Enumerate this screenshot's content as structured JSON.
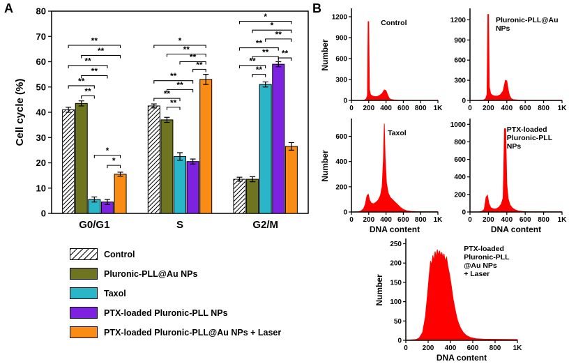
{
  "panels": {
    "a_label": "A",
    "b_label": "B"
  },
  "colors": {
    "axis": "#000000",
    "histogram_fill": "#ff0000"
  },
  "chart_data": [
    {
      "id": "cell-cycle-bar",
      "type": "bar",
      "title": "",
      "xlabel": "",
      "ylabel": "Cell cycle (%)",
      "ylim": [
        0,
        80
      ],
      "yticks": [
        0,
        10,
        20,
        30,
        40,
        50,
        60,
        70,
        80
      ],
      "categories": [
        "G0/G1",
        "S",
        "G2/M"
      ],
      "legend_position": "below",
      "series": [
        {
          "name": "Control",
          "hatched": true,
          "color": "#ffffff",
          "values": [
            41,
            42.5,
            13.5
          ],
          "errors": [
            1,
            0.8,
            0.8
          ]
        },
        {
          "name": "Pluronic-PLL@Au NPs",
          "hatched": false,
          "color": "#6e7420",
          "values": [
            43.5,
            37,
            13.5
          ],
          "errors": [
            1,
            1,
            1
          ]
        },
        {
          "name": "Taxol",
          "hatched": false,
          "color": "#29b6c8",
          "values": [
            5.5,
            22.5,
            51
          ],
          "errors": [
            1,
            1.5,
            1
          ]
        },
        {
          "name": "PTX-loaded Pluronic-PLL NPs",
          "hatched": false,
          "color": "#7d22e0",
          "values": [
            4.5,
            20.5,
            59
          ],
          "errors": [
            1,
            1,
            1
          ]
        },
        {
          "name": "PTX-loaded Pluronic-PLL@Au NPs + Laser",
          "hatched": false,
          "color": "#fa8b15",
          "values": [
            15.5,
            53,
            26.5
          ],
          "errors": [
            0.8,
            2,
            1.5
          ]
        }
      ],
      "significance": [
        {
          "group": 0,
          "a": 2,
          "b": 3,
          "y": 46.5,
          "label": "**"
        },
        {
          "group": 0,
          "a": 1,
          "b": 3,
          "y": 50.5,
          "label": "**"
        },
        {
          "group": 0,
          "a": 2,
          "b": 4,
          "y": 54.5,
          "label": "**"
        },
        {
          "group": 0,
          "a": 1,
          "b": 4,
          "y": 58.5,
          "label": "**"
        },
        {
          "group": 0,
          "a": 2,
          "b": 5,
          "y": 62.5,
          "label": "**"
        },
        {
          "group": 0,
          "a": 1,
          "b": 5,
          "y": 66.5,
          "label": "**"
        },
        {
          "group": 0,
          "a": 4,
          "b": 5,
          "y": 19,
          "label": "*"
        },
        {
          "group": 0,
          "a": 3,
          "b": 5,
          "y": 23,
          "label": "*"
        },
        {
          "group": 1,
          "a": 2,
          "b": 3,
          "y": 42,
          "label": "**"
        },
        {
          "group": 1,
          "a": 1,
          "b": 3,
          "y": 45.5,
          "label": "**"
        },
        {
          "group": 1,
          "a": 2,
          "b": 4,
          "y": 49,
          "label": "**"
        },
        {
          "group": 1,
          "a": 1,
          "b": 4,
          "y": 52.5,
          "label": "**"
        },
        {
          "group": 1,
          "a": 4,
          "b": 5,
          "y": 57,
          "label": "**"
        },
        {
          "group": 1,
          "a": 3,
          "b": 5,
          "y": 60,
          "label": "**"
        },
        {
          "group": 1,
          "a": 2,
          "b": 5,
          "y": 63,
          "label": "**"
        },
        {
          "group": 1,
          "a": 1,
          "b": 5,
          "y": 66.5,
          "label": "*"
        },
        {
          "group": 2,
          "a": 2,
          "b": 3,
          "y": 55,
          "label": "**"
        },
        {
          "group": 2,
          "a": 1,
          "b": 3,
          "y": 58.5,
          "label": "**"
        },
        {
          "group": 2,
          "a": 4,
          "b": 5,
          "y": 61.5,
          "label": "**"
        },
        {
          "group": 2,
          "a": 2,
          "b": 4,
          "y": 62,
          "label": "**"
        },
        {
          "group": 2,
          "a": 1,
          "b": 4,
          "y": 65.5,
          "label": "**"
        },
        {
          "group": 2,
          "a": 3,
          "b": 5,
          "y": 69,
          "label": "**"
        },
        {
          "group": 2,
          "a": 2,
          "b": 5,
          "y": 72.5,
          "label": "*"
        },
        {
          "group": 2,
          "a": 1,
          "b": 5,
          "y": 76,
          "label": "*"
        }
      ]
    },
    {
      "id": "hist-control",
      "type": "area",
      "label_lines": [
        "Control"
      ],
      "label_x": 0.34,
      "label_y": 0.1,
      "ylabel": "Number",
      "xlabel": "",
      "xlim": [
        0,
        1000
      ],
      "xticks": [
        0,
        200,
        400,
        600,
        800,
        1000
      ],
      "xtick_labels": [
        "0",
        "200",
        "400",
        "600",
        "800",
        "1K"
      ],
      "ylim": [
        0,
        1300
      ],
      "yticks": [
        0,
        300,
        600,
        900,
        1200
      ],
      "fill": "#ff0000",
      "points": [
        [
          0,
          0
        ],
        [
          120,
          2
        ],
        [
          150,
          6
        ],
        [
          170,
          20
        ],
        [
          185,
          70
        ],
        [
          193,
          1130
        ],
        [
          200,
          1130
        ],
        [
          208,
          160
        ],
        [
          220,
          85
        ],
        [
          240,
          65
        ],
        [
          265,
          55
        ],
        [
          295,
          55
        ],
        [
          325,
          70
        ],
        [
          355,
          100
        ],
        [
          380,
          150
        ],
        [
          400,
          140
        ],
        [
          418,
          80
        ],
        [
          435,
          35
        ],
        [
          455,
          14
        ],
        [
          490,
          7
        ],
        [
          550,
          4
        ],
        [
          650,
          2
        ],
        [
          1000,
          2
        ]
      ]
    },
    {
      "id": "hist-pluronic-pll-au-nps",
      "type": "area",
      "label_lines": [
        "Pluronic-PLL@Au",
        "NPs"
      ],
      "label_x": 0.28,
      "label_y": 0.07,
      "ylabel": "",
      "xlabel": "",
      "xlim": [
        0,
        1000
      ],
      "xticks": [
        0,
        200,
        400,
        600,
        800,
        1000
      ],
      "xtick_labels": [
        "0",
        "200",
        "400",
        "600",
        "800",
        "1K"
      ],
      "ylim": [
        0,
        1350
      ],
      "yticks": [
        0,
        300,
        600,
        900,
        1200
      ],
      "fill": "#ff0000",
      "points": [
        [
          0,
          0
        ],
        [
          120,
          2
        ],
        [
          150,
          8
        ],
        [
          170,
          25
        ],
        [
          185,
          90
        ],
        [
          194,
          1280
        ],
        [
          202,
          1280
        ],
        [
          210,
          200
        ],
        [
          225,
          100
        ],
        [
          245,
          75
        ],
        [
          270,
          65
        ],
        [
          300,
          65
        ],
        [
          330,
          85
        ],
        [
          360,
          140
        ],
        [
          385,
          300
        ],
        [
          400,
          290
        ],
        [
          415,
          160
        ],
        [
          430,
          70
        ],
        [
          450,
          25
        ],
        [
          475,
          10
        ],
        [
          520,
          6
        ],
        [
          600,
          3
        ],
        [
          1000,
          2
        ]
      ]
    },
    {
      "id": "hist-taxol",
      "type": "area",
      "label_lines": [
        "Taxol"
      ],
      "label_x": 0.42,
      "label_y": 0.1,
      "ylabel": "Number",
      "xlabel": "DNA content",
      "xlim": [
        0,
        1000
      ],
      "xticks": [
        0,
        200,
        400,
        600,
        800,
        1000
      ],
      "xtick_labels": [
        "0",
        "200",
        "400",
        "600",
        "800",
        "1K"
      ],
      "ylim": [
        0,
        730
      ],
      "yticks": [
        0,
        200,
        400,
        600
      ],
      "fill": "#ff0000",
      "points": [
        [
          0,
          0
        ],
        [
          80,
          2
        ],
        [
          110,
          8
        ],
        [
          140,
          25
        ],
        [
          160,
          60
        ],
        [
          180,
          130
        ],
        [
          195,
          140
        ],
        [
          210,
          95
        ],
        [
          230,
          70
        ],
        [
          255,
          65
        ],
        [
          280,
          75
        ],
        [
          310,
          95
        ],
        [
          335,
          130
        ],
        [
          355,
          200
        ],
        [
          370,
          420
        ],
        [
          380,
          700
        ],
        [
          390,
          430
        ],
        [
          405,
          230
        ],
        [
          425,
          150
        ],
        [
          450,
          115
        ],
        [
          480,
          95
        ],
        [
          510,
          75
        ],
        [
          540,
          55
        ],
        [
          570,
          35
        ],
        [
          600,
          20
        ],
        [
          640,
          10
        ],
        [
          690,
          5
        ],
        [
          750,
          3
        ],
        [
          1000,
          2
        ]
      ]
    },
    {
      "id": "hist-ptx-loaded-pluronic-pll-nps",
      "type": "area",
      "label_lines": [
        "PTX-loaded",
        "Pluronic-PLL",
        "NPs"
      ],
      "label_x": 0.4,
      "label_y": 0.06,
      "ylabel": "",
      "xlabel": "DNA content",
      "xlim": [
        0,
        1000
      ],
      "xticks": [
        0,
        200,
        400,
        600,
        800,
        1000
      ],
      "xtick_labels": [
        "0",
        "200",
        "400",
        "600",
        "800",
        "1K"
      ],
      "ylim": [
        0,
        1050
      ],
      "yticks": [
        0,
        200,
        400,
        600,
        800,
        1000
      ],
      "fill": "#ff0000",
      "points": [
        [
          0,
          0
        ],
        [
          100,
          2
        ],
        [
          130,
          8
        ],
        [
          155,
          30
        ],
        [
          175,
          170
        ],
        [
          190,
          190
        ],
        [
          205,
          100
        ],
        [
          225,
          50
        ],
        [
          255,
          35
        ],
        [
          285,
          35
        ],
        [
          315,
          55
        ],
        [
          340,
          90
        ],
        [
          360,
          160
        ],
        [
          375,
          950
        ],
        [
          388,
          950
        ],
        [
          400,
          320
        ],
        [
          415,
          150
        ],
        [
          435,
          80
        ],
        [
          460,
          45
        ],
        [
          490,
          25
        ],
        [
          525,
          12
        ],
        [
          570,
          6
        ],
        [
          640,
          3
        ],
        [
          1000,
          2
        ]
      ]
    },
    {
      "id": "hist-ptx-loaded-pluronic-pll-au-nps-laser",
      "type": "area",
      "label_lines": [
        "PTX-loaded",
        "Pluronic-PLL",
        "@Au NPs",
        "+ Laser"
      ],
      "label_x": 0.52,
      "label_y": 0.05,
      "ylabel": "Number",
      "xlabel": "DNA content",
      "xlim": [
        0,
        1000
      ],
      "xticks": [
        0,
        200,
        400,
        600,
        800,
        1000
      ],
      "xtick_labels": [
        "0",
        "200",
        "400",
        "600",
        "800",
        "1K"
      ],
      "ylim": [
        0,
        260
      ],
      "yticks": [
        0,
        50,
        100,
        150,
        200,
        250
      ],
      "fill": "#ff0000",
      "points": [
        [
          0,
          0
        ],
        [
          90,
          2
        ],
        [
          120,
          6
        ],
        [
          150,
          20
        ],
        [
          175,
          60
        ],
        [
          195,
          120
        ],
        [
          210,
          170
        ],
        [
          222,
          205
        ],
        [
          232,
          195
        ],
        [
          242,
          220
        ],
        [
          252,
          205
        ],
        [
          262,
          230
        ],
        [
          272,
          215
        ],
        [
          282,
          235
        ],
        [
          292,
          220
        ],
        [
          302,
          232
        ],
        [
          312,
          218
        ],
        [
          322,
          228
        ],
        [
          332,
          214
        ],
        [
          342,
          224
        ],
        [
          352,
          205
        ],
        [
          365,
          215
        ],
        [
          378,
          190
        ],
        [
          392,
          170
        ],
        [
          408,
          140
        ],
        [
          425,
          105
        ],
        [
          445,
          75
        ],
        [
          465,
          50
        ],
        [
          490,
          32
        ],
        [
          515,
          20
        ],
        [
          545,
          12
        ],
        [
          580,
          7
        ],
        [
          630,
          4
        ],
        [
          700,
          3
        ],
        [
          1000,
          2
        ]
      ]
    }
  ]
}
